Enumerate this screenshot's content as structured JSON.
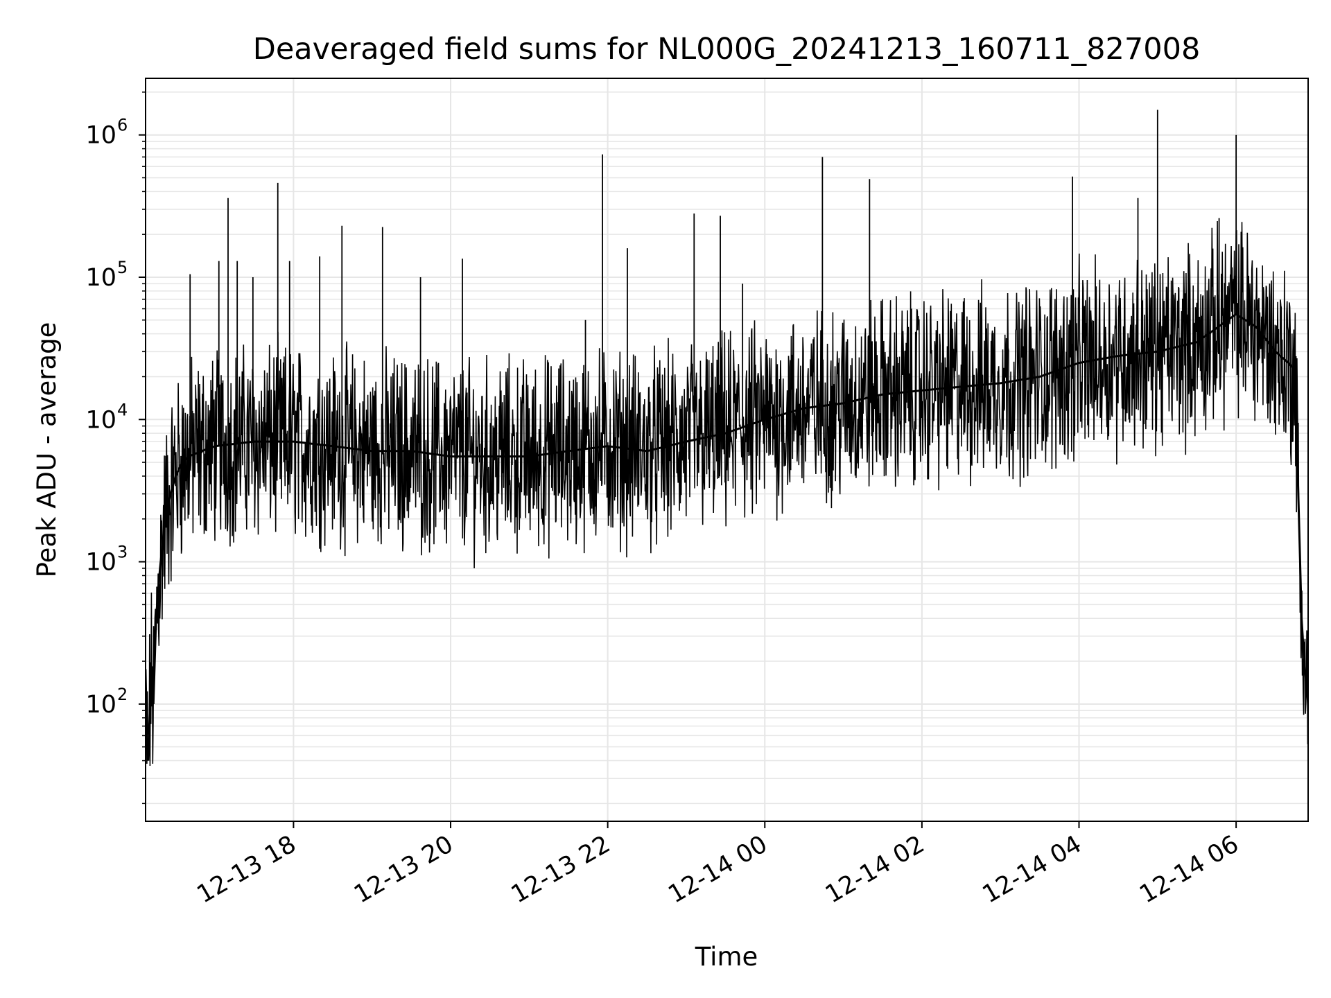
{
  "chart_data": {
    "type": "line",
    "title": "Deaveraged field sums for NL000G_20241213_160711_827008",
    "xlabel": "Time",
    "ylabel": "Peak ADU - average",
    "x_axis": {
      "kind": "time",
      "range": [
        "2024-12-13 16:07",
        "2024-12-14 06:55"
      ],
      "ticks": [
        {
          "value": "2024-12-13 18:00",
          "label": "12-13 18"
        },
        {
          "value": "2024-12-13 20:00",
          "label": "12-13 20"
        },
        {
          "value": "2024-12-13 22:00",
          "label": "12-13 22"
        },
        {
          "value": "2024-12-14 00:00",
          "label": "12-14 00"
        },
        {
          "value": "2024-12-14 02:00",
          "label": "12-14 02"
        },
        {
          "value": "2024-12-14 04:00",
          "label": "12-14 04"
        },
        {
          "value": "2024-12-14 06:00",
          "label": "12-14 06"
        }
      ]
    },
    "y_axis": {
      "scale": "log",
      "range": [
        15,
        2500000
      ],
      "ticks": [
        {
          "value": 100,
          "base": "10",
          "exp": "2"
        },
        {
          "value": 1000,
          "base": "10",
          "exp": "3"
        },
        {
          "value": 10000,
          "base": "10",
          "exp": "4"
        },
        {
          "value": 100000,
          "base": "10",
          "exp": "5"
        },
        {
          "value": 1000000,
          "base": "10",
          "exp": "6"
        }
      ]
    },
    "grid": true,
    "line_color": "#000000",
    "grid_color": "#e6e6e6",
    "series": [
      {
        "x": [
          "2024-12-13 16:07",
          "2024-12-13 16:09",
          "2024-12-13 16:11",
          "2024-12-13 16:13",
          "2024-12-13 16:15",
          "2024-12-13 16:18",
          "2024-12-13 16:22",
          "2024-12-13 16:26",
          "2024-12-13 16:30",
          "2024-12-13 16:35",
          "2024-12-13 16:40",
          "2024-12-13 16:50",
          "2024-12-13 17:00",
          "2024-12-13 17:30",
          "2024-12-13 18:00",
          "2024-12-13 18:30",
          "2024-12-13 19:00",
          "2024-12-13 19:30",
          "2024-12-13 20:00",
          "2024-12-13 20:30",
          "2024-12-13 21:00",
          "2024-12-13 21:30",
          "2024-12-13 22:00",
          "2024-12-13 22:30",
          "2024-12-13 23:00",
          "2024-12-13 23:30",
          "2024-12-14 00:00",
          "2024-12-14 00:30",
          "2024-12-14 01:00",
          "2024-12-14 01:30",
          "2024-12-14 02:00",
          "2024-12-14 02:30",
          "2024-12-14 03:00",
          "2024-12-14 03:30",
          "2024-12-14 04:00",
          "2024-12-14 04:30",
          "2024-12-14 05:00",
          "2024-12-14 05:30",
          "2024-12-14 06:00",
          "2024-12-14 06:15",
          "2024-12-14 06:30",
          "2024-12-14 06:40",
          "2024-12-14 06:45",
          "2024-12-14 06:48",
          "2024-12-14 06:50",
          "2024-12-14 06:52",
          "2024-12-14 06:55"
        ],
        "y": [
          80,
          40,
          150,
          100,
          400,
          900,
          2000,
          3000,
          4000,
          5000,
          5500,
          6000,
          6500,
          7000,
          7000,
          6500,
          6000,
          6000,
          5500,
          5500,
          5500,
          6000,
          6500,
          6000,
          7000,
          8000,
          10000,
          12000,
          13000,
          15000,
          16000,
          17000,
          18000,
          20000,
          25000,
          28000,
          30000,
          35000,
          55000,
          45000,
          30000,
          25000,
          22000,
          2000,
          400,
          200,
          100
        ]
      }
    ],
    "spikes": [
      {
        "x": "2024-12-13 16:41",
        "y": 105000
      },
      {
        "x": "2024-12-13 17:03",
        "y": 130000
      },
      {
        "x": "2024-12-13 17:10",
        "y": 360000
      },
      {
        "x": "2024-12-13 17:17",
        "y": 130000
      },
      {
        "x": "2024-12-13 17:29",
        "y": 100000
      },
      {
        "x": "2024-12-13 17:48",
        "y": 460000
      },
      {
        "x": "2024-12-13 17:57",
        "y": 130000
      },
      {
        "x": "2024-12-13 18:20",
        "y": 140000
      },
      {
        "x": "2024-12-13 18:37",
        "y": 230000
      },
      {
        "x": "2024-12-13 19:08",
        "y": 225000
      },
      {
        "x": "2024-12-13 19:37",
        "y": 100000
      },
      {
        "x": "2024-12-13 20:09",
        "y": 135000
      },
      {
        "x": "2024-12-13 21:43",
        "y": 50000
      },
      {
        "x": "2024-12-13 21:56",
        "y": 730000
      },
      {
        "x": "2024-12-13 22:15",
        "y": 160000
      },
      {
        "x": "2024-12-13 23:06",
        "y": 280000
      },
      {
        "x": "2024-12-13 23:26",
        "y": 270000
      },
      {
        "x": "2024-12-13 23:43",
        "y": 90000
      },
      {
        "x": "2024-12-14 00:44",
        "y": 700000
      },
      {
        "x": "2024-12-14 01:20",
        "y": 490000
      },
      {
        "x": "2024-12-14 03:55",
        "y": 510000
      },
      {
        "x": "2024-12-14 04:45",
        "y": 360000
      },
      {
        "x": "2024-12-14 05:00",
        "y": 1500000
      },
      {
        "x": "2024-12-14 05:47",
        "y": 260000
      },
      {
        "x": "2024-12-14 06:00",
        "y": 1000000
      }
    ]
  }
}
